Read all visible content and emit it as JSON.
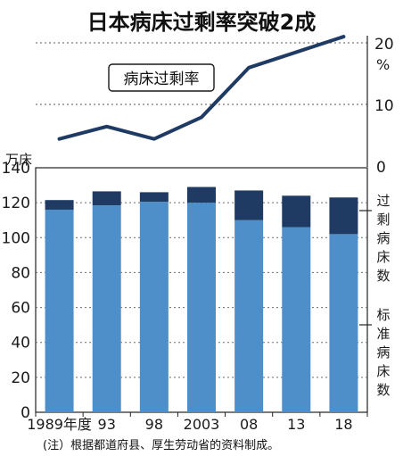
{
  "chart_data": [
    {
      "type": "line",
      "title": "日本病床过剩率突破2成",
      "series": [
        {
          "name": "病床过剩率",
          "values": [
            4.5,
            6.5,
            4.5,
            8,
            16,
            18.5,
            21
          ]
        }
      ],
      "categories": [
        "1989年度",
        "93",
        "98",
        "2003",
        "08",
        "13",
        "18"
      ],
      "ylabel": "%",
      "ylim": [
        0,
        20
      ],
      "yticks": [
        "0",
        "10",
        "20"
      ],
      "color": "#1f3b63"
    },
    {
      "type": "bar",
      "ylabel": "万床",
      "ylim": [
        0,
        140
      ],
      "yticks": [
        "0",
        "20",
        "40",
        "60",
        "80",
        "100",
        "120",
        "140"
      ],
      "categories": [
        "1989年度",
        "93",
        "98",
        "2003",
        "08",
        "13",
        "18"
      ],
      "series": [
        {
          "name": "标准病床数",
          "values": [
            116,
            118.5,
            120.5,
            120,
            110,
            106,
            102
          ],
          "color": "#4f8fc9"
        },
        {
          "name": "过剩病床数",
          "values": [
            5.5,
            8,
            5.5,
            9,
            17,
            18,
            21
          ],
          "color": "#1f3b63"
        }
      ],
      "grid": true
    }
  ],
  "footnote": "(注）根据都道府县、厚生劳动省的资料制成。"
}
